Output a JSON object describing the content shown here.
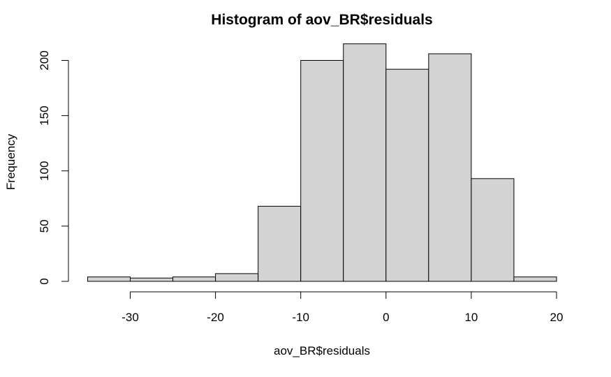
{
  "chart_data": {
    "type": "bar",
    "subtype": "histogram",
    "title": "Histogram of aov_BR$residuals",
    "xlabel": "aov_BR$residuals",
    "ylabel": "Frequency",
    "bin_edges": [
      -35,
      -30,
      -25,
      -20,
      -15,
      -10,
      -5,
      0,
      5,
      10,
      15,
      20
    ],
    "values": [
      4,
      3,
      4,
      7,
      68,
      200,
      215,
      192,
      206,
      93,
      4
    ],
    "xlim": [
      -35,
      20
    ],
    "ylim": [
      0,
      215
    ],
    "x_ticks": [
      -30,
      -20,
      -10,
      0,
      10,
      20
    ],
    "y_ticks": [
      0,
      50,
      100,
      150,
      200
    ],
    "bar_fill": "#d3d3d3",
    "bar_stroke": "#000000",
    "grid": false
  }
}
